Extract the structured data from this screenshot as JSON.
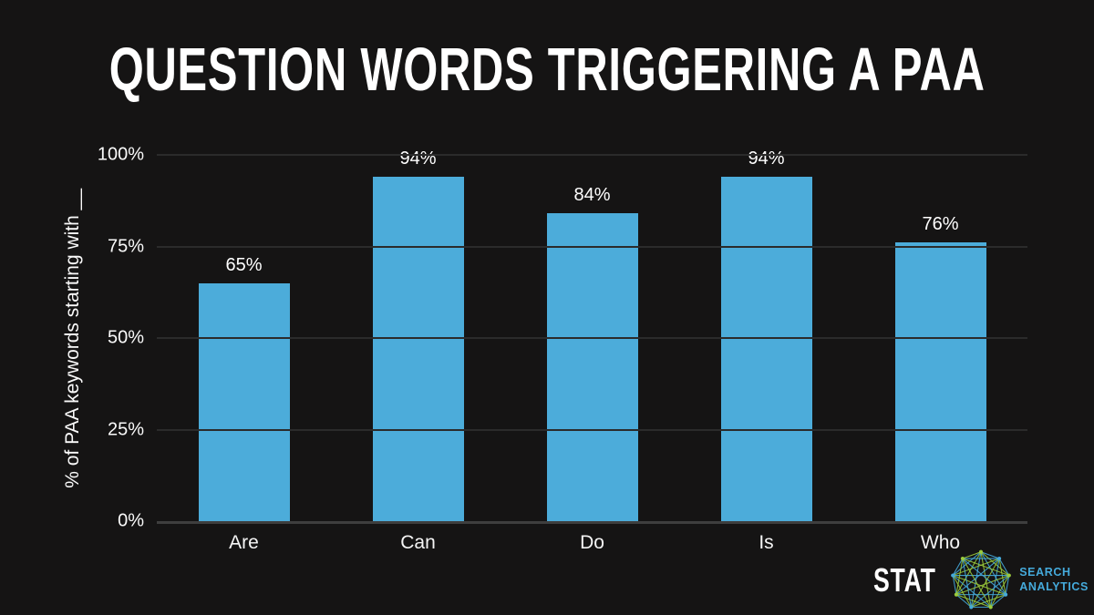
{
  "title": "QUESTION WORDS TRIGGERING A PAA",
  "colors": {
    "background": "#151414",
    "bar": "#4CACDA",
    "gridline": "#2b2b2b",
    "axis_baseline": "#3e3e3e",
    "text": "#ffffff",
    "logo_blue": "#45AADB",
    "logo_green": "#9BCB3C"
  },
  "chart_data": {
    "type": "bar",
    "categories": [
      "Are",
      "Can",
      "Do",
      "Is",
      "Who"
    ],
    "values": [
      65,
      94,
      84,
      94,
      76
    ],
    "value_labels": [
      "65%",
      "94%",
      "84%",
      "94%",
      "76%"
    ],
    "title": "QUESTION WORDS TRIGGERING A PAA",
    "xlabel": "",
    "ylabel": "% of PAA keywords starting with __",
    "ylim": [
      0,
      100
    ],
    "yticks": [
      {
        "value": 0,
        "label": "0%"
      },
      {
        "value": 25,
        "label": "25%"
      },
      {
        "value": 50,
        "label": "50%"
      },
      {
        "value": 75,
        "label": "75%"
      },
      {
        "value": 100,
        "label": "100%"
      }
    ],
    "grid": true,
    "legend": "none",
    "bar_color": "#4CACDA"
  },
  "footer": {
    "brand": "STAT",
    "icon": "network-polyhedron-icon",
    "tagline": [
      "SEARCH",
      "ANALYTICS"
    ]
  }
}
